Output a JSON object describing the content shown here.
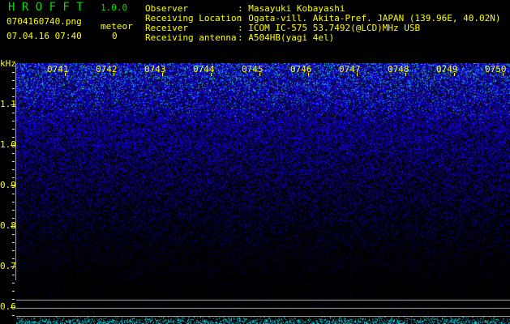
{
  "app": {
    "title": "H R O F F T",
    "version": "1.0.0",
    "filename": "0704160740.png",
    "datetime": "07.04.16 07:40",
    "meteor_label": "meteor",
    "meteor_count": "0"
  },
  "info": [
    {
      "label": "Observer",
      "value": ": Masayuki Kobayashi"
    },
    {
      "label": "Receiving Location",
      "value": ": Ogata-vill. Akita-Pref. JAPAN (139.96E, 40.02N)"
    },
    {
      "label": "Receiver",
      "value": ": ICOM IC-575 53.7492(@LCD)MHz USB"
    },
    {
      "label": "Receiving antenna",
      "value": ": A504HB(yagi 4el)"
    }
  ],
  "spectrogram": {
    "y_unit": "kHz",
    "y_ticks": [
      "1.1",
      "1.0",
      "0.9",
      "0.8",
      "0.7",
      "0.6"
    ],
    "time_labels": [
      "0741",
      "0742",
      "0743",
      "0744",
      "0745",
      "0746",
      "0747",
      "0748",
      "0749",
      "0750"
    ],
    "colors": {
      "text": "#ffff00",
      "title": "#00e000",
      "noise": "#0000ff",
      "peak": "#00ffff",
      "reference_lines": "#a0a0a0"
    }
  }
}
